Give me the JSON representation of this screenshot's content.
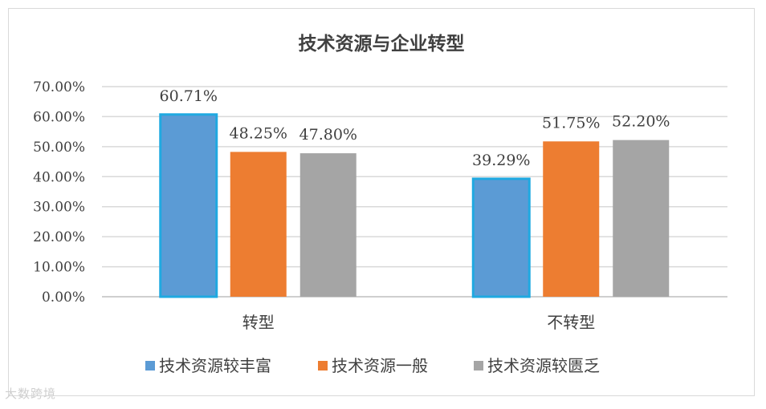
{
  "chart_data": {
    "type": "bar",
    "title": "技术资源与企业转型",
    "categories": [
      "转型",
      "不转型"
    ],
    "series": [
      {
        "name": "技术资源较丰富",
        "values": [
          60.71,
          39.29
        ],
        "labels": [
          "60.71%",
          "39.29%"
        ],
        "color": "#5b9bd5"
      },
      {
        "name": "技术资源一般",
        "values": [
          48.25,
          51.75
        ],
        "labels": [
          "48.25%",
          "51.75%"
        ],
        "color": "#ed7d31"
      },
      {
        "name": "技术资源较匮乏",
        "values": [
          47.8,
          52.2
        ],
        "labels": [
          "47.80%",
          "52.20%"
        ],
        "color": "#a5a5a5"
      }
    ],
    "yticks": [
      "0.00%",
      "10.00%",
      "20.00%",
      "30.00%",
      "40.00%",
      "50.00%",
      "60.00%",
      "70.00%"
    ],
    "ylim": [
      0,
      70
    ],
    "grid": true,
    "legend_position": "bottom"
  },
  "watermark": "大数跨境"
}
